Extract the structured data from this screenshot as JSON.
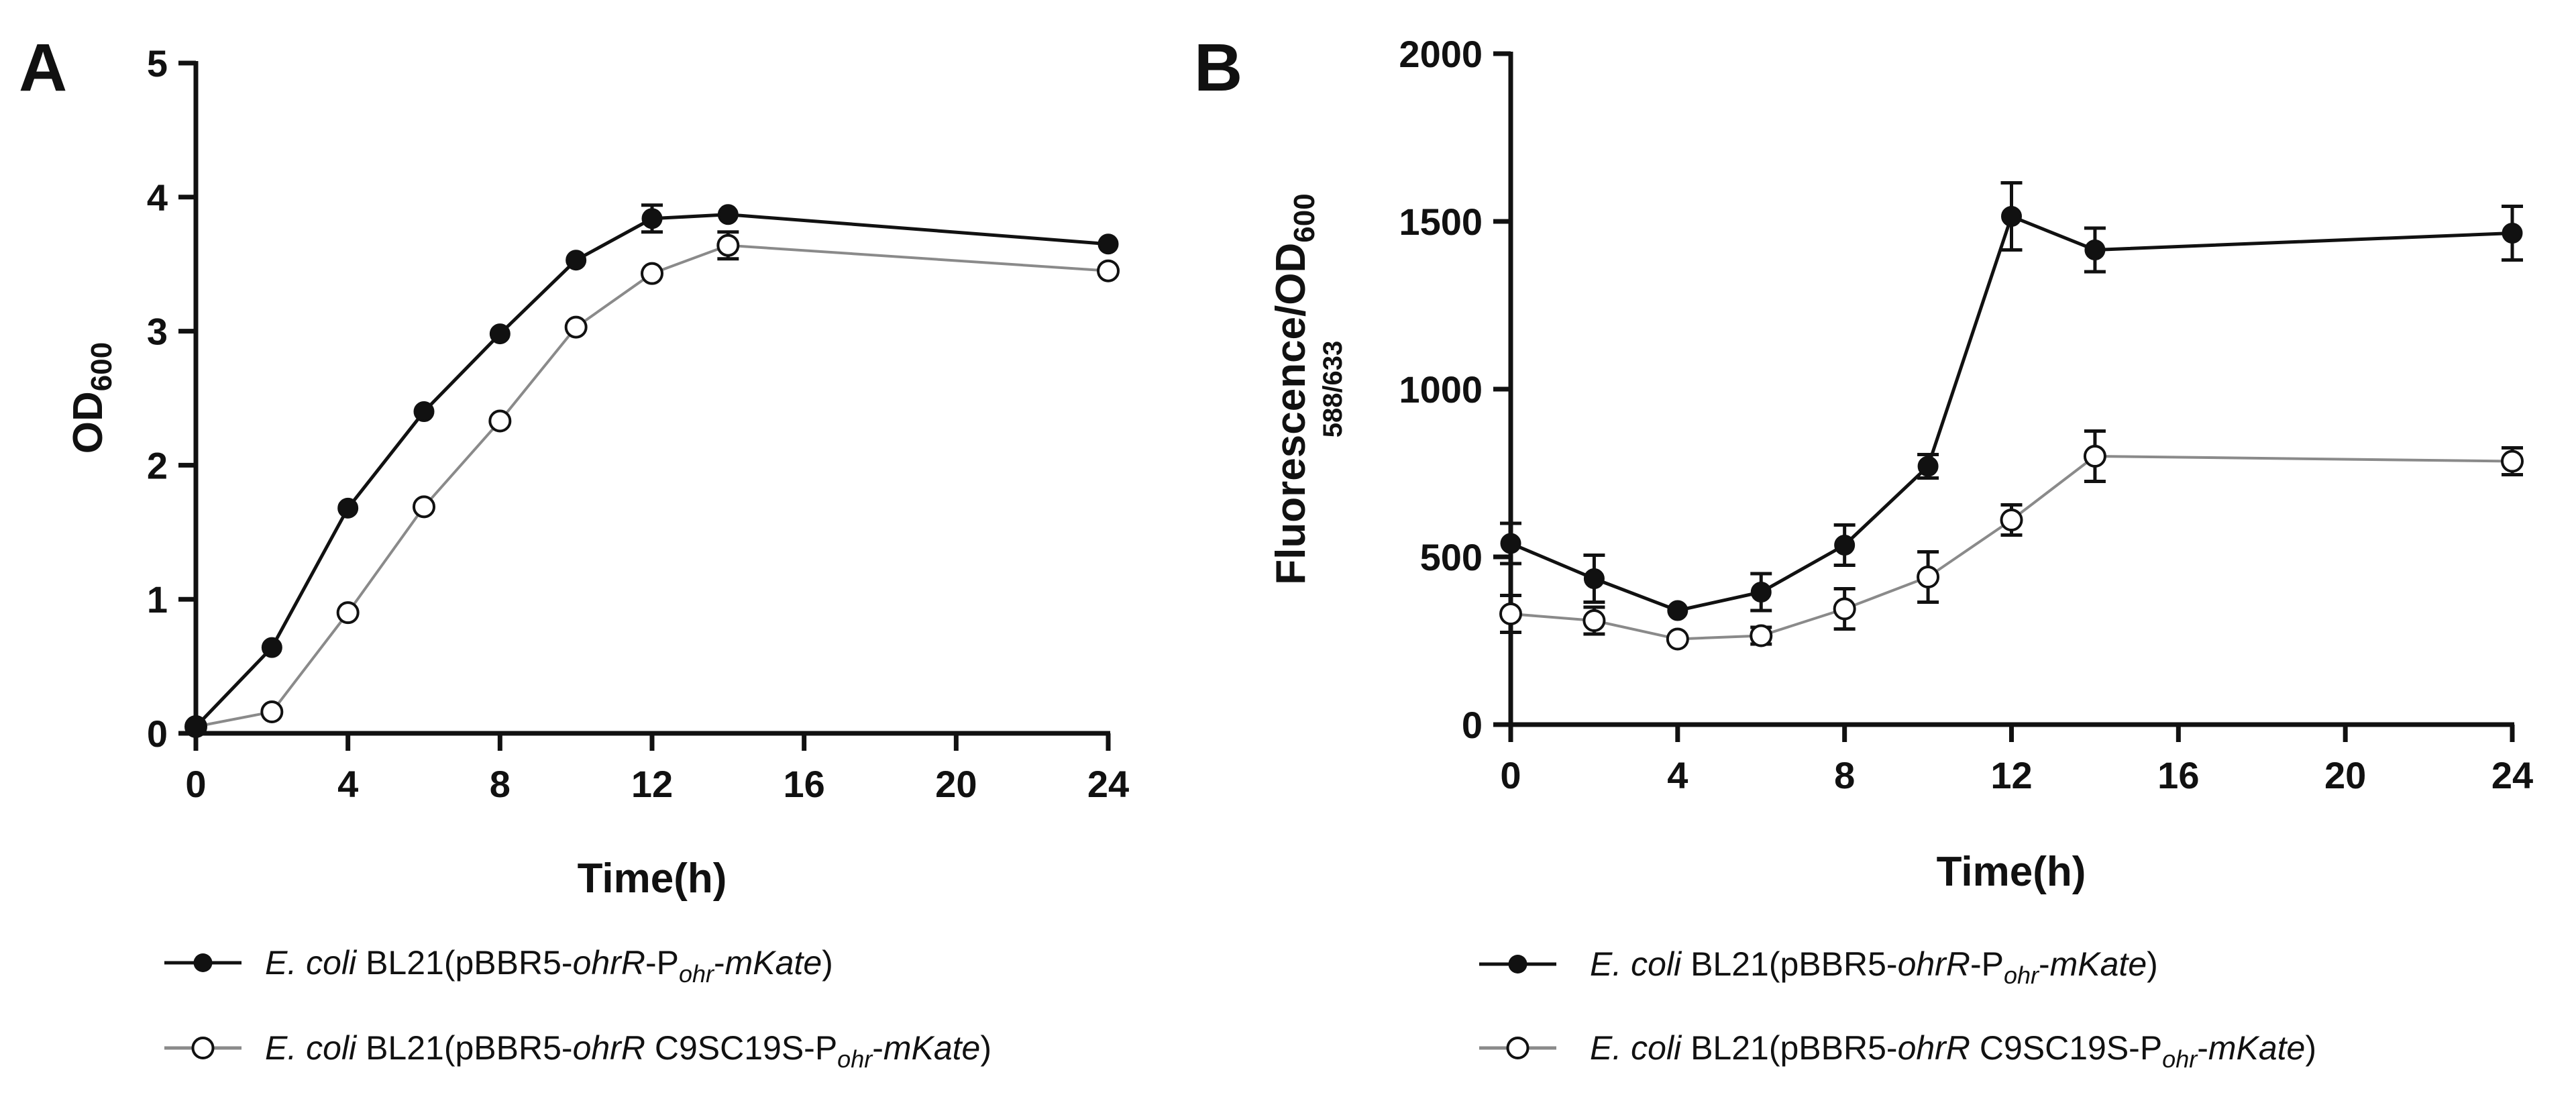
{
  "colors": {
    "series_filled": "#111111",
    "series_open": "#8a8a8a",
    "open_fill": "#ffffff"
  },
  "chart_data": [
    {
      "panel": "A",
      "type": "line",
      "xlabel": "Time(h)",
      "ylabel_main": "OD",
      "ylabel_sub": "600",
      "xlim": [
        0,
        24
      ],
      "ylim": [
        0,
        5
      ],
      "xticks": [
        0,
        4,
        8,
        12,
        16,
        20,
        24
      ],
      "yticks": [
        0,
        1,
        2,
        3,
        4,
        5
      ],
      "legend_position": "bottom",
      "series": [
        {
          "name_parts": [
            {
              "text": "E. coli",
              "style": "italic"
            },
            {
              "text": " BL21(pBBR5-"
            },
            {
              "text": "ohrR",
              "style": "italic"
            },
            {
              "text": "-P"
            },
            {
              "text": "ohr",
              "style": "italic-sub"
            },
            {
              "text": "-"
            },
            {
              "text": "mKate",
              "style": "italic"
            },
            {
              "text": ")"
            }
          ],
          "marker": "filled",
          "x": [
            0,
            2,
            4,
            6,
            8,
            10,
            12,
            14,
            24
          ],
          "y": [
            0.05,
            0.64,
            1.68,
            2.4,
            2.98,
            3.53,
            3.84,
            3.87,
            3.65
          ],
          "err": [
            0,
            0,
            0,
            0,
            0,
            0,
            0.1,
            0,
            0
          ]
        },
        {
          "name_parts": [
            {
              "text": "E. coli",
              "style": "italic"
            },
            {
              "text": " BL21(pBBR5-"
            },
            {
              "text": "ohrR",
              "style": "italic"
            },
            {
              "text": " C9SC19S-P"
            },
            {
              "text": "ohr",
              "style": "italic-sub"
            },
            {
              "text": "-"
            },
            {
              "text": "mKate",
              "style": "italic"
            },
            {
              "text": ")"
            }
          ],
          "marker": "open",
          "x": [
            0,
            2,
            4,
            6,
            8,
            10,
            12,
            14,
            24
          ],
          "y": [
            0.05,
            0.16,
            0.9,
            1.69,
            2.33,
            3.03,
            3.43,
            3.64,
            3.45
          ],
          "err": [
            0,
            0,
            0,
            0,
            0,
            0,
            0,
            0.1,
            0
          ]
        }
      ]
    },
    {
      "panel": "B",
      "type": "line",
      "xlabel": "Time(h)",
      "ylabel_main": "Fluorescence/OD",
      "ylabel_sub": "600",
      "ylabel_line2": "588/633",
      "xlim": [
        0,
        24
      ],
      "ylim": [
        0,
        2000
      ],
      "xticks": [
        0,
        4,
        8,
        12,
        16,
        20,
        24
      ],
      "yticks": [
        0,
        500,
        1000,
        1500,
        2000
      ],
      "legend_position": "bottom",
      "series": [
        {
          "name_parts": [
            {
              "text": "E. coli",
              "style": "italic"
            },
            {
              "text": " BL21(pBBR5-"
            },
            {
              "text": "ohrR",
              "style": "italic"
            },
            {
              "text": "-P"
            },
            {
              "text": "ohr",
              "style": "italic-sub"
            },
            {
              "text": "-"
            },
            {
              "text": "mKate",
              "style": "italic"
            },
            {
              "text": ")"
            }
          ],
          "marker": "filled",
          "x": [
            0,
            2,
            4,
            6,
            8,
            10,
            12,
            14,
            24
          ],
          "y": [
            540,
            435,
            340,
            395,
            535,
            770,
            1515,
            1415,
            1465
          ],
          "err": [
            60,
            70,
            0,
            55,
            60,
            35,
            100,
            65,
            80
          ]
        },
        {
          "name_parts": [
            {
              "text": "E. coli",
              "style": "italic"
            },
            {
              "text": " BL21(pBBR5-"
            },
            {
              "text": "ohrR",
              "style": "italic"
            },
            {
              "text": " C9SC19S-P"
            },
            {
              "text": "ohr",
              "style": "italic-sub"
            },
            {
              "text": "-"
            },
            {
              "text": "mKate",
              "style": "italic"
            },
            {
              "text": ")"
            }
          ],
          "marker": "open",
          "x": [
            0,
            2,
            4,
            6,
            8,
            10,
            12,
            14,
            24
          ],
          "y": [
            330,
            310,
            255,
            265,
            345,
            440,
            610,
            800,
            785
          ],
          "err": [
            55,
            40,
            0,
            25,
            60,
            75,
            45,
            75,
            40
          ]
        }
      ]
    }
  ],
  "panels": [
    "A",
    "B"
  ]
}
